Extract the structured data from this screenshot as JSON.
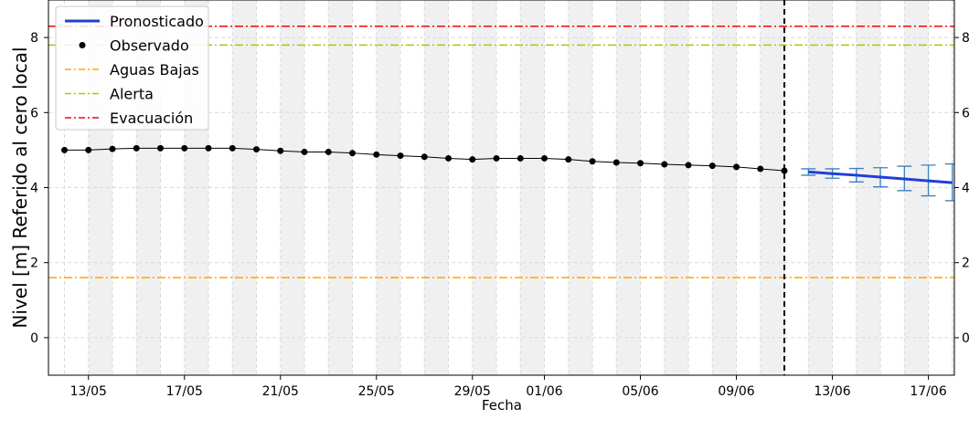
{
  "chart_data": {
    "type": "line",
    "xlabel": "Fecha",
    "ylabel": "Nivel [m] Referido al cero local",
    "x_range": [
      "2024-05-11T08:00",
      "2024-06-18T02:00"
    ],
    "ylim": [
      -1,
      9
    ],
    "y_ticks": [
      0,
      2,
      4,
      6,
      8
    ],
    "y_tick_labels": [
      "0",
      "2",
      "4",
      "6",
      "8"
    ],
    "right_y_tick_labels": [
      "0",
      "2",
      "4",
      "6",
      "8"
    ],
    "x_ticks": [
      "2024-05-13",
      "2024-05-17",
      "2024-05-21",
      "2024-05-25",
      "2024-05-29",
      "2024-06-01",
      "2024-06-05",
      "2024-06-09",
      "2024-06-13",
      "2024-06-17"
    ],
    "x_tick_labels": [
      "13/05",
      "17/05",
      "21/05",
      "25/05",
      "29/05",
      "01/06",
      "05/06",
      "09/06",
      "13/06",
      "17/06"
    ],
    "grid": true,
    "shaded_bands": [
      "2024-05-13",
      "2024-05-15",
      "2024-05-17",
      "2024-05-19",
      "2024-05-21",
      "2024-05-23",
      "2024-05-25",
      "2024-05-27",
      "2024-05-29",
      "2024-05-31",
      "2024-06-02",
      "2024-06-04",
      "2024-06-06",
      "2024-06-08",
      "2024-06-10",
      "2024-06-12",
      "2024-06-14",
      "2024-06-16",
      "2024-06-18"
    ],
    "forecast_start": "2024-06-11",
    "thresholds": [
      {
        "name": "Aguas Bajas",
        "value": 1.6,
        "color": "#ffa500"
      },
      {
        "name": "Alerta",
        "value": 7.8,
        "color": "#bfbf00"
      },
      {
        "name": "Evacuación",
        "value": 8.3,
        "color": "#ff0000"
      }
    ],
    "series": [
      {
        "name": "Observado",
        "color": "#000000",
        "x": [
          "2024-05-12",
          "2024-05-13",
          "2024-05-14",
          "2024-05-15",
          "2024-05-16",
          "2024-05-17",
          "2024-05-18",
          "2024-05-19",
          "2024-05-20",
          "2024-05-21",
          "2024-05-22",
          "2024-05-23",
          "2024-05-24",
          "2024-05-25",
          "2024-05-26",
          "2024-05-27",
          "2024-05-28",
          "2024-05-29",
          "2024-05-30",
          "2024-05-31",
          "2024-06-01",
          "2024-06-02",
          "2024-06-03",
          "2024-06-04",
          "2024-06-05",
          "2024-06-06",
          "2024-06-07",
          "2024-06-08",
          "2024-06-09",
          "2024-06-10",
          "2024-06-11"
        ],
        "values": [
          5.0,
          5.0,
          5.03,
          5.05,
          5.05,
          5.05,
          5.05,
          5.05,
          5.02,
          4.98,
          4.95,
          4.95,
          4.92,
          4.88,
          4.85,
          4.82,
          4.78,
          4.75,
          4.78,
          4.78,
          4.78,
          4.75,
          4.7,
          4.67,
          4.65,
          4.62,
          4.6,
          4.58,
          4.55,
          4.5,
          4.45
        ]
      },
      {
        "name": "Pronosticado",
        "color": "#1f3fd6",
        "x": [
          "2024-06-12",
          "2024-06-13",
          "2024-06-14",
          "2024-06-15",
          "2024-06-16",
          "2024-06-17",
          "2024-06-18"
        ],
        "values": [
          4.42,
          4.37,
          4.33,
          4.28,
          4.23,
          4.18,
          4.13
        ],
        "error_low": [
          4.33,
          4.25,
          4.15,
          4.02,
          3.92,
          3.78,
          3.65
        ],
        "error_high": [
          4.5,
          4.5,
          4.51,
          4.53,
          4.57,
          4.6,
          4.63
        ]
      }
    ],
    "legend": {
      "position": "top-left",
      "entries": [
        "Pronosticado",
        "Observado",
        "Aguas Bajas",
        "Alerta",
        "Evacuación"
      ]
    }
  }
}
